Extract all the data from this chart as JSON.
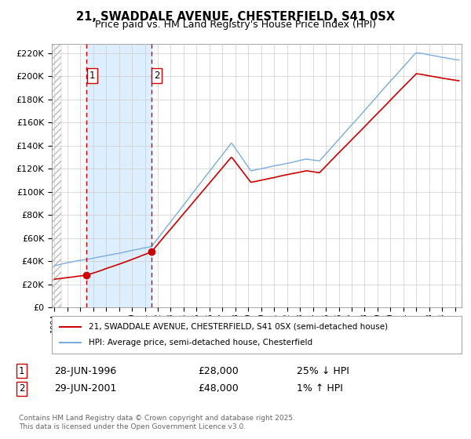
{
  "title": "21, SWADDALE AVENUE, CHESTERFIELD, S41 0SX",
  "subtitle": "Price paid vs. HM Land Registry's House Price Index (HPI)",
  "ylabel_ticks": [
    0,
    20000,
    40000,
    60000,
    80000,
    100000,
    120000,
    140000,
    160000,
    180000,
    200000,
    220000
  ],
  "ylabel_labels": [
    "£0",
    "£20K",
    "£40K",
    "£60K",
    "£80K",
    "£100K",
    "£120K",
    "£140K",
    "£160K",
    "£180K",
    "£200K",
    "£220K"
  ],
  "ylim": [
    0,
    228000
  ],
  "xlim_start": 1993.8,
  "xlim_end": 2025.5,
  "sale1_date": 1996.49,
  "sale1_price": 28000,
  "sale2_date": 2001.49,
  "sale2_price": 48000,
  "red_color": "#cc0000",
  "blue_color": "#7aaddc",
  "bg_color": "#ffffff",
  "grid_color": "#cccccc",
  "hatch_color": "#cccccc",
  "shade_color": "#ddeeff",
  "legend1": "21, SWADDALE AVENUE, CHESTERFIELD, S41 0SX (semi-detached house)",
  "legend2": "HPI: Average price, semi-detached house, Chesterfield",
  "ann1_num": "1",
  "ann1_date": "28-JUN-1996",
  "ann1_price": "£28,000",
  "ann1_hpi": "25% ↓ HPI",
  "ann2_num": "2",
  "ann2_date": "29-JUN-2001",
  "ann2_price": "£48,000",
  "ann2_hpi": "1% ↑ HPI",
  "footer": "Contains HM Land Registry data © Crown copyright and database right 2025.\nThis data is licensed under the Open Government Licence v3.0."
}
